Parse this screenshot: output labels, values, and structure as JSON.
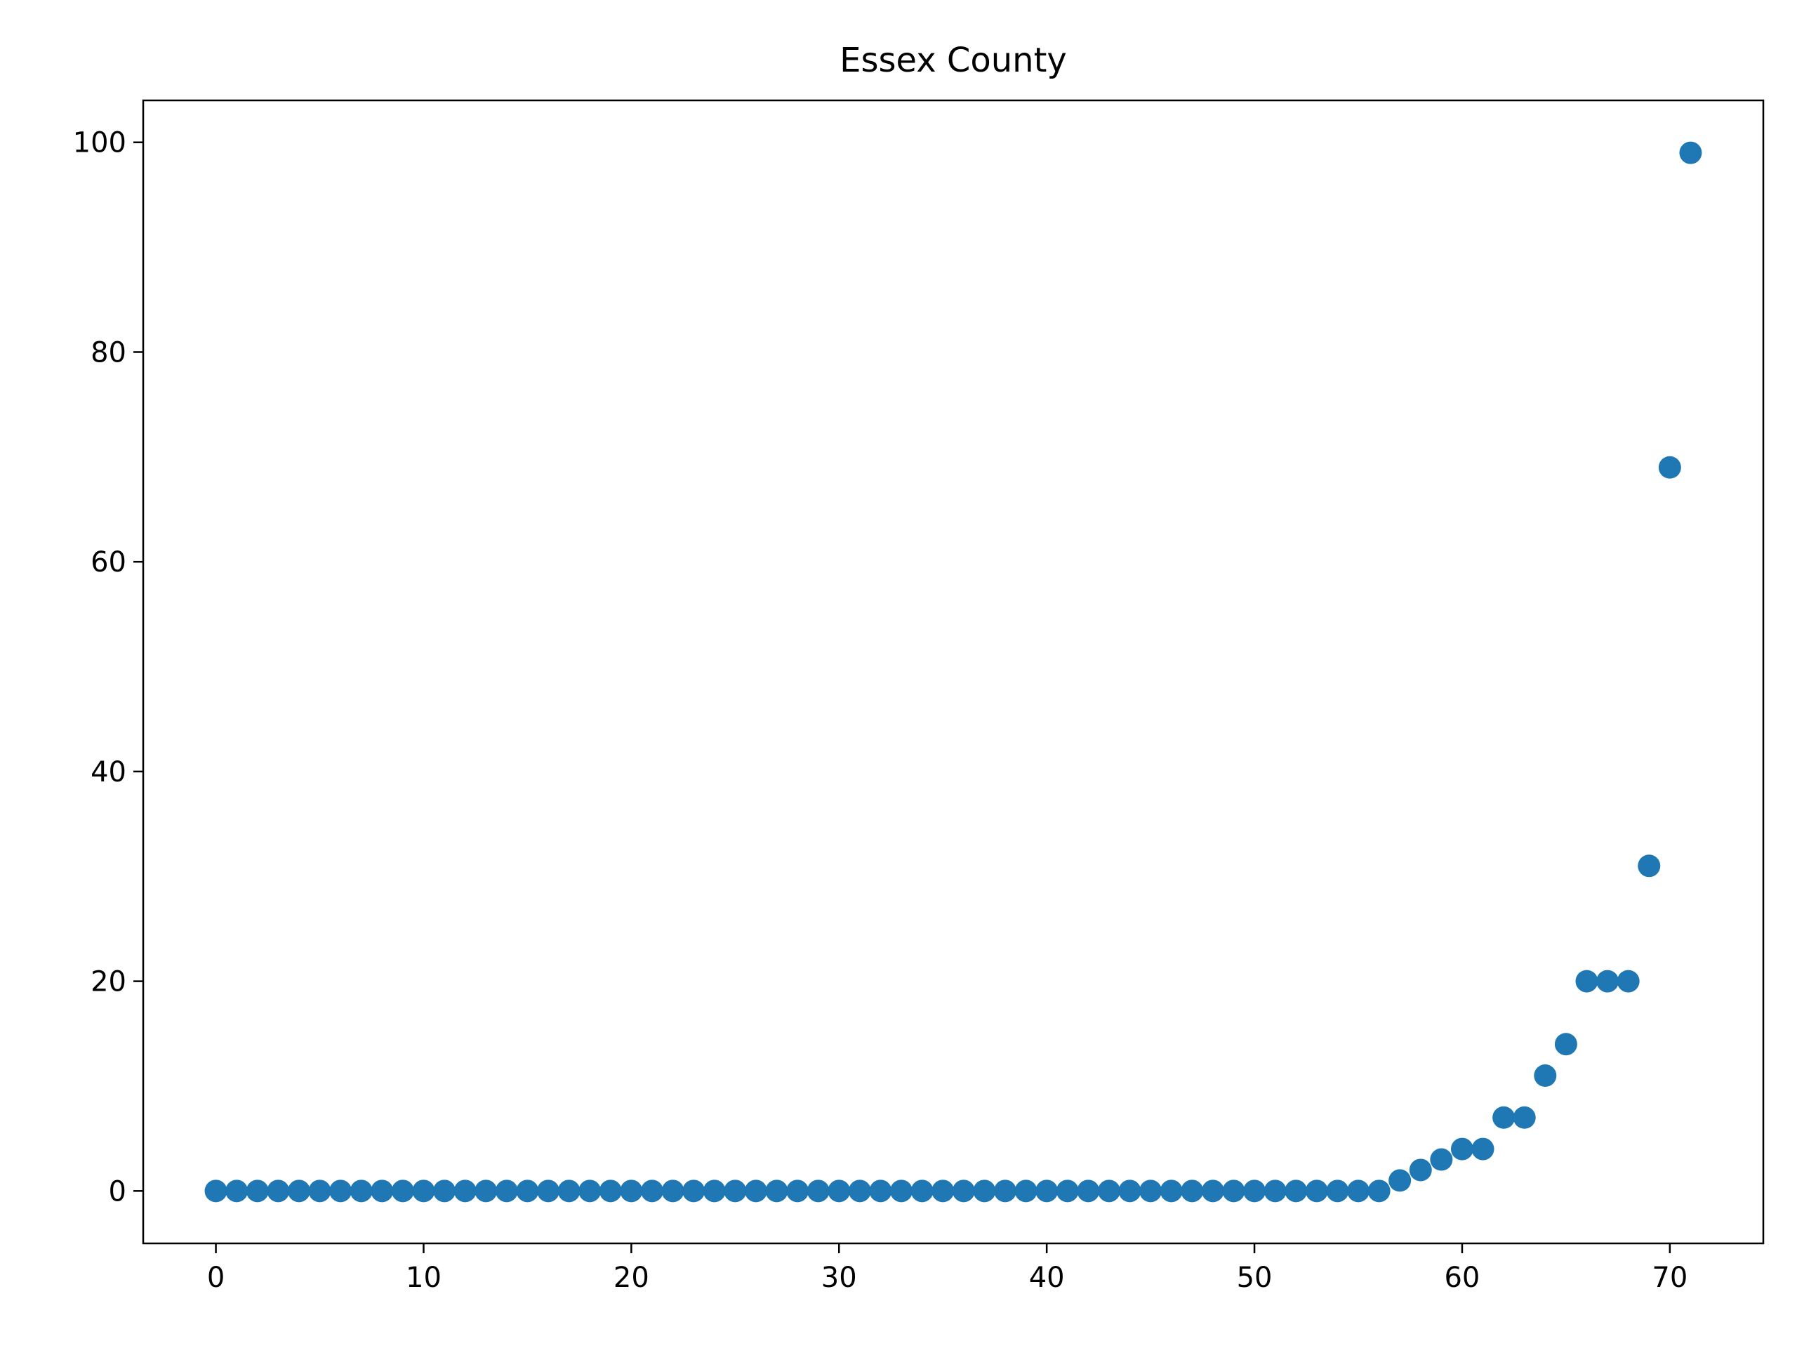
{
  "chart_data": {
    "type": "scatter",
    "title": "Essex County",
    "xlabel": "",
    "ylabel": "",
    "xlim": [
      -3.5,
      74.5
    ],
    "ylim": [
      -5,
      104
    ],
    "x_ticks": [
      0,
      10,
      20,
      30,
      40,
      50,
      60,
      70
    ],
    "y_ticks": [
      0,
      20,
      40,
      60,
      80,
      100
    ],
    "grid": false,
    "legend": "none",
    "marker_color": "#1f77b4",
    "x": [
      0,
      1,
      2,
      3,
      4,
      5,
      6,
      7,
      8,
      9,
      10,
      11,
      12,
      13,
      14,
      15,
      16,
      17,
      18,
      19,
      20,
      21,
      22,
      23,
      24,
      25,
      26,
      27,
      28,
      29,
      30,
      31,
      32,
      33,
      34,
      35,
      36,
      37,
      38,
      39,
      40,
      41,
      42,
      43,
      44,
      45,
      46,
      47,
      48,
      49,
      50,
      51,
      52,
      53,
      54,
      55,
      56,
      57,
      58,
      59,
      60,
      61,
      62,
      63,
      64,
      65,
      66,
      67,
      68,
      69,
      70,
      71
    ],
    "y": [
      0,
      0,
      0,
      0,
      0,
      0,
      0,
      0,
      0,
      0,
      0,
      0,
      0,
      0,
      0,
      0,
      0,
      0,
      0,
      0,
      0,
      0,
      0,
      0,
      0,
      0,
      0,
      0,
      0,
      0,
      0,
      0,
      0,
      0,
      0,
      0,
      0,
      0,
      0,
      0,
      0,
      0,
      0,
      0,
      0,
      0,
      0,
      0,
      0,
      0,
      0,
      0,
      0,
      0,
      0,
      0,
      0,
      1,
      2,
      3,
      4,
      4,
      7,
      7,
      11,
      14,
      20,
      20,
      20,
      31,
      69,
      99
    ]
  }
}
